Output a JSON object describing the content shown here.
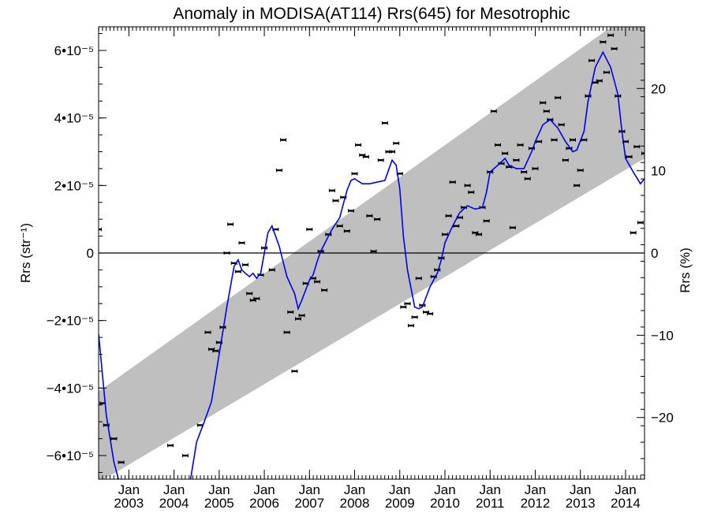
{
  "chart_data": {
    "type": "scatter",
    "title": "Anomaly in MODISA(AT114) Rrs(645) for Mesotrophic",
    "ylabel": "Rrs (str⁻¹)",
    "y2label": "Rrs (%)",
    "xlim": [
      2002.33,
      2014.42
    ],
    "ylim": [
      -6.7e-05,
      6.7e-05
    ],
    "y2lim": [
      -27.5,
      27.5
    ],
    "x_ticks": [
      {
        "pos": 2003.0,
        "month": "Jan",
        "year": "2003"
      },
      {
        "pos": 2004.0,
        "month": "Jan",
        "year": "2004"
      },
      {
        "pos": 2005.0,
        "month": "Jan",
        "year": "2005"
      },
      {
        "pos": 2006.0,
        "month": "Jan",
        "year": "2006"
      },
      {
        "pos": 2007.0,
        "month": "Jan",
        "year": "2007"
      },
      {
        "pos": 2008.0,
        "month": "Jan",
        "year": "2008"
      },
      {
        "pos": 2009.0,
        "month": "Jan",
        "year": "2009"
      },
      {
        "pos": 2010.0,
        "month": "Jan",
        "year": "2010"
      },
      {
        "pos": 2011.0,
        "month": "Jan",
        "year": "2011"
      },
      {
        "pos": 2012.0,
        "month": "Jan",
        "year": "2012"
      },
      {
        "pos": 2013.0,
        "month": "Jan",
        "year": "2013"
      },
      {
        "pos": 2014.0,
        "month": "Jan",
        "year": "2014"
      }
    ],
    "y_ticks": [
      {
        "value": 6e-05,
        "label": "6•10⁻⁵"
      },
      {
        "value": 4e-05,
        "label": "4•10⁻⁵"
      },
      {
        "value": 2e-05,
        "label": "2•10⁻⁵"
      },
      {
        "value": 0,
        "label": "0"
      },
      {
        "value": -2e-05,
        "label": "−2•10⁻⁵"
      },
      {
        "value": -4e-05,
        "label": "−4•10⁻⁵"
      },
      {
        "value": -6e-05,
        "label": "−6•10⁻⁵"
      }
    ],
    "y2_ticks": [
      {
        "value": 20,
        "label": "20"
      },
      {
        "value": 10,
        "label": "10"
      },
      {
        "value": 0,
        "label": "0"
      },
      {
        "value": -10,
        "label": "−10"
      },
      {
        "value": -20,
        "label": "−20"
      }
    ],
    "band": {
      "upper": [
        [
          2002.33,
          -4.1e-05
        ],
        [
          2014.42,
          7.4e-05
        ]
      ],
      "lower": [
        [
          2002.33,
          -6.8e-05
        ],
        [
          2014.42,
          2.8e-05
        ]
      ]
    },
    "zero_line": 0,
    "points": [
      [
        2002.33,
        7e-06
      ],
      [
        2002.42,
        -4.45e-05
      ],
      [
        2002.5,
        -5.1e-05
      ],
      [
        2002.67,
        -5.5e-05
      ],
      [
        2002.83,
        -6.2e-05
      ],
      [
        2003.92,
        -5.7e-05
      ],
      [
        2004.25,
        -6e-05
      ],
      [
        2004.58,
        -5.1e-05
      ],
      [
        2004.75,
        -2.35e-05
      ],
      [
        2004.83,
        -2.85e-05
      ],
      [
        2004.92,
        -2.9e-05
      ],
      [
        2005.0,
        -2.65e-05
      ],
      [
        2005.08,
        -2.2e-05
      ],
      [
        2005.17,
        0.0
      ],
      [
        2005.25,
        8.5e-06
      ],
      [
        2005.33,
        -3e-06
      ],
      [
        2005.42,
        -5.5e-06
      ],
      [
        2005.5,
        3e-06
      ],
      [
        2005.58,
        -3.5e-06
      ],
      [
        2005.67,
        -1.2e-05
      ],
      [
        2005.75,
        -1.4e-05
      ],
      [
        2005.83,
        -1.35e-05
      ],
      [
        2005.92,
        -6.5e-06
      ],
      [
        2006.0,
        1.5e-06
      ],
      [
        2006.17,
        -5e-06
      ],
      [
        2006.25,
        7e-06
      ],
      [
        2006.33,
        2.45e-05
      ],
      [
        2006.42,
        3.35e-05
      ],
      [
        2006.5,
        -2.35e-05
      ],
      [
        2006.58,
        -1.75e-05
      ],
      [
        2006.67,
        -3.5e-05
      ],
      [
        2006.75,
        -1.95e-05
      ],
      [
        2006.83,
        -1.85e-05
      ],
      [
        2006.92,
        -9e-06
      ],
      [
        2007.0,
        7e-06
      ],
      [
        2007.08,
        -7.5e-06
      ],
      [
        2007.17,
        -8.5e-06
      ],
      [
        2007.25,
        5e-07
      ],
      [
        2007.33,
        -1.1e-05
      ],
      [
        2007.42,
        5.5e-06
      ],
      [
        2007.5,
        1.85e-05
      ],
      [
        2007.58,
        1.55e-05
      ],
      [
        2007.67,
        8e-06
      ],
      [
        2007.75,
        1.65e-05
      ],
      [
        2007.83,
        6.5e-06
      ],
      [
        2007.92,
        1.25e-05
      ],
      [
        2008.0,
        2.35e-05
      ],
      [
        2008.08,
        3.2e-05
      ],
      [
        2008.17,
        2.9e-05
      ],
      [
        2008.25,
        2.85e-05
      ],
      [
        2008.33,
        1.1e-05
      ],
      [
        2008.42,
        5e-07
      ],
      [
        2008.5,
        1e-05
      ],
      [
        2008.58,
        2.75e-05
      ],
      [
        2008.67,
        3.85e-05
      ],
      [
        2008.75,
        3e-05
      ],
      [
        2008.83,
        3e-05
      ],
      [
        2008.92,
        3.25e-05
      ],
      [
        2009.0,
        2.35e-05
      ],
      [
        2009.08,
        -1.6e-05
      ],
      [
        2009.17,
        -1.5e-05
      ],
      [
        2009.25,
        -2.15e-05
      ],
      [
        2009.33,
        -1.9e-05
      ],
      [
        2009.42,
        -7.5e-06
      ],
      [
        2009.5,
        -1.55e-05
      ],
      [
        2009.58,
        -1.75e-05
      ],
      [
        2009.67,
        -1.8e-05
      ],
      [
        2009.75,
        -7e-06
      ],
      [
        2009.83,
        -5e-06
      ],
      [
        2009.92,
        -1.5e-06
      ],
      [
        2010.0,
        5.5e-06
      ],
      [
        2010.08,
        1.1e-05
      ],
      [
        2010.17,
        2.1e-05
      ],
      [
        2010.25,
        8e-06
      ],
      [
        2010.33,
        1.05e-05
      ],
      [
        2010.42,
        1.35e-05
      ],
      [
        2010.5,
        2e-05
      ],
      [
        2010.58,
        1.8e-05
      ],
      [
        2010.67,
        6e-06
      ],
      [
        2010.75,
        5.5e-06
      ],
      [
        2010.83,
        1.35e-05
      ],
      [
        2010.92,
        9.5e-06
      ],
      [
        2011.0,
        2.4e-05
      ],
      [
        2011.08,
        4.2e-05
      ],
      [
        2011.17,
        3.2e-05
      ],
      [
        2011.25,
        2.65e-05
      ],
      [
        2011.33,
        2.95e-05
      ],
      [
        2011.42,
        2.55e-05
      ],
      [
        2011.5,
        7.5e-06
      ],
      [
        2011.58,
        2.75e-05
      ],
      [
        2011.67,
        3.2e-05
      ],
      [
        2011.75,
        2.4e-05
      ],
      [
        2011.83,
        2.2e-05
      ],
      [
        2011.92,
        3.1e-05
      ],
      [
        2012.0,
        2.5e-05
      ],
      [
        2012.08,
        3.3e-05
      ],
      [
        2012.17,
        4.45e-05
      ],
      [
        2012.25,
        4.2e-05
      ],
      [
        2012.33,
        3.95e-05
      ],
      [
        2012.42,
        3.35e-05
      ],
      [
        2012.5,
        4.6e-05
      ],
      [
        2012.58,
        3.8e-05
      ],
      [
        2012.67,
        2.75e-05
      ],
      [
        2012.75,
        3.1e-05
      ],
      [
        2012.83,
        3.35e-05
      ],
      [
        2012.92,
        2e-05
      ],
      [
        2013.0,
        2.45e-05
      ],
      [
        2013.08,
        3.35e-05
      ],
      [
        2013.17,
        4.65e-05
      ],
      [
        2013.25,
        5.7e-05
      ],
      [
        2013.33,
        5.05e-05
      ],
      [
        2013.42,
        5.1e-05
      ],
      [
        2013.5,
        6.25e-05
      ],
      [
        2013.58,
        5.35e-05
      ],
      [
        2013.67,
        6.45e-05
      ],
      [
        2013.75,
        6.05e-05
      ],
      [
        2013.83,
        4.65e-05
      ],
      [
        2013.92,
        3.6e-05
      ],
      [
        2014.0,
        3.3e-05
      ],
      [
        2014.08,
        2.85e-05
      ],
      [
        2014.17,
        6e-06
      ],
      [
        2014.25,
        3.15e-05
      ],
      [
        2014.33,
        9e-06
      ],
      [
        2014.42,
        2.95e-05
      ]
    ],
    "smooth_line": [
      [
        2002.33,
        -2.4e-05
      ],
      [
        2002.5,
        -4.8e-05
      ],
      [
        2002.67,
        -6.2e-05
      ],
      [
        2002.83,
        -7e-05
      ],
      [
        2004.33,
        -7e-05
      ],
      [
        2004.5,
        -5.6e-05
      ],
      [
        2004.67,
        -5e-05
      ],
      [
        2004.83,
        -4.4e-05
      ],
      [
        2005.0,
        -3e-05
      ],
      [
        2005.17,
        -1.6e-05
      ],
      [
        2005.33,
        -4e-06
      ],
      [
        2005.42,
        -2e-06
      ],
      [
        2005.5,
        -5e-06
      ],
      [
        2005.58,
        -6e-06
      ],
      [
        2005.67,
        -7e-06
      ],
      [
        2005.75,
        -6e-06
      ],
      [
        2005.83,
        -7.5e-06
      ],
      [
        2005.92,
        -6e-06
      ],
      [
        2006.08,
        6e-06
      ],
      [
        2006.17,
        8e-06
      ],
      [
        2006.33,
        2e-06
      ],
      [
        2006.5,
        -7e-06
      ],
      [
        2006.67,
        -1.2e-05
      ],
      [
        2006.75,
        -1.65e-05
      ],
      [
        2006.83,
        -1.4e-05
      ],
      [
        2007.0,
        -8e-06
      ],
      [
        2007.08,
        -6.5e-06
      ],
      [
        2007.17,
        -2.5e-06
      ],
      [
        2007.25,
        5e-07
      ],
      [
        2007.42,
        5e-06
      ],
      [
        2007.5,
        7e-06
      ],
      [
        2007.67,
        1.05e-05
      ],
      [
        2007.83,
        1.85e-05
      ],
      [
        2007.92,
        2.15e-05
      ],
      [
        2008.0,
        2.2e-05
      ],
      [
        2008.17,
        2.05e-05
      ],
      [
        2008.33,
        2.05e-05
      ],
      [
        2008.5,
        2.1e-05
      ],
      [
        2008.67,
        2.15e-05
      ],
      [
        2008.75,
        2.45e-05
      ],
      [
        2008.83,
        2.75e-05
      ],
      [
        2008.92,
        2.6e-05
      ],
      [
        2009.0,
        1.9e-05
      ],
      [
        2009.08,
        5e-06
      ],
      [
        2009.17,
        -5e-06
      ],
      [
        2009.33,
        -1.6e-05
      ],
      [
        2009.42,
        -1.65e-05
      ],
      [
        2009.5,
        -1.6e-05
      ],
      [
        2009.67,
        -1e-05
      ],
      [
        2009.83,
        -6e-06
      ],
      [
        2009.92,
        -2e-06
      ],
      [
        2010.0,
        3e-06
      ],
      [
        2010.17,
        8e-06
      ],
      [
        2010.33,
        1.2e-05
      ],
      [
        2010.5,
        1.4e-05
      ],
      [
        2010.67,
        1.3e-05
      ],
      [
        2010.83,
        1.35e-05
      ],
      [
        2010.92,
        1.8e-05
      ],
      [
        2011.0,
        2.4e-05
      ],
      [
        2011.17,
        2.6e-05
      ],
      [
        2011.33,
        2.8e-05
      ],
      [
        2011.42,
        2.6e-05
      ],
      [
        2011.58,
        2.5e-05
      ],
      [
        2011.75,
        2.5e-05
      ],
      [
        2011.92,
        3e-05
      ],
      [
        2012.0,
        3.3e-05
      ],
      [
        2012.17,
        3.8e-05
      ],
      [
        2012.33,
        3.95e-05
      ],
      [
        2012.5,
        3.7e-05
      ],
      [
        2012.67,
        3.3e-05
      ],
      [
        2012.83,
        3e-05
      ],
      [
        2012.92,
        3.05e-05
      ],
      [
        2013.08,
        3.6e-05
      ],
      [
        2013.17,
        4.5e-05
      ],
      [
        2013.33,
        5.5e-05
      ],
      [
        2013.5,
        5.95e-05
      ],
      [
        2013.67,
        5.5e-05
      ],
      [
        2013.83,
        4.7e-05
      ],
      [
        2013.92,
        3.6e-05
      ],
      [
        2014.0,
        2.8e-05
      ],
      [
        2014.17,
        2.4e-05
      ],
      [
        2014.33,
        2.05e-05
      ],
      [
        2014.42,
        2.2e-05
      ]
    ],
    "colors": {
      "band": "#bfbfbf",
      "line": "#0000e6",
      "points": "#000000",
      "axis": "#000000"
    },
    "grid": false
  }
}
